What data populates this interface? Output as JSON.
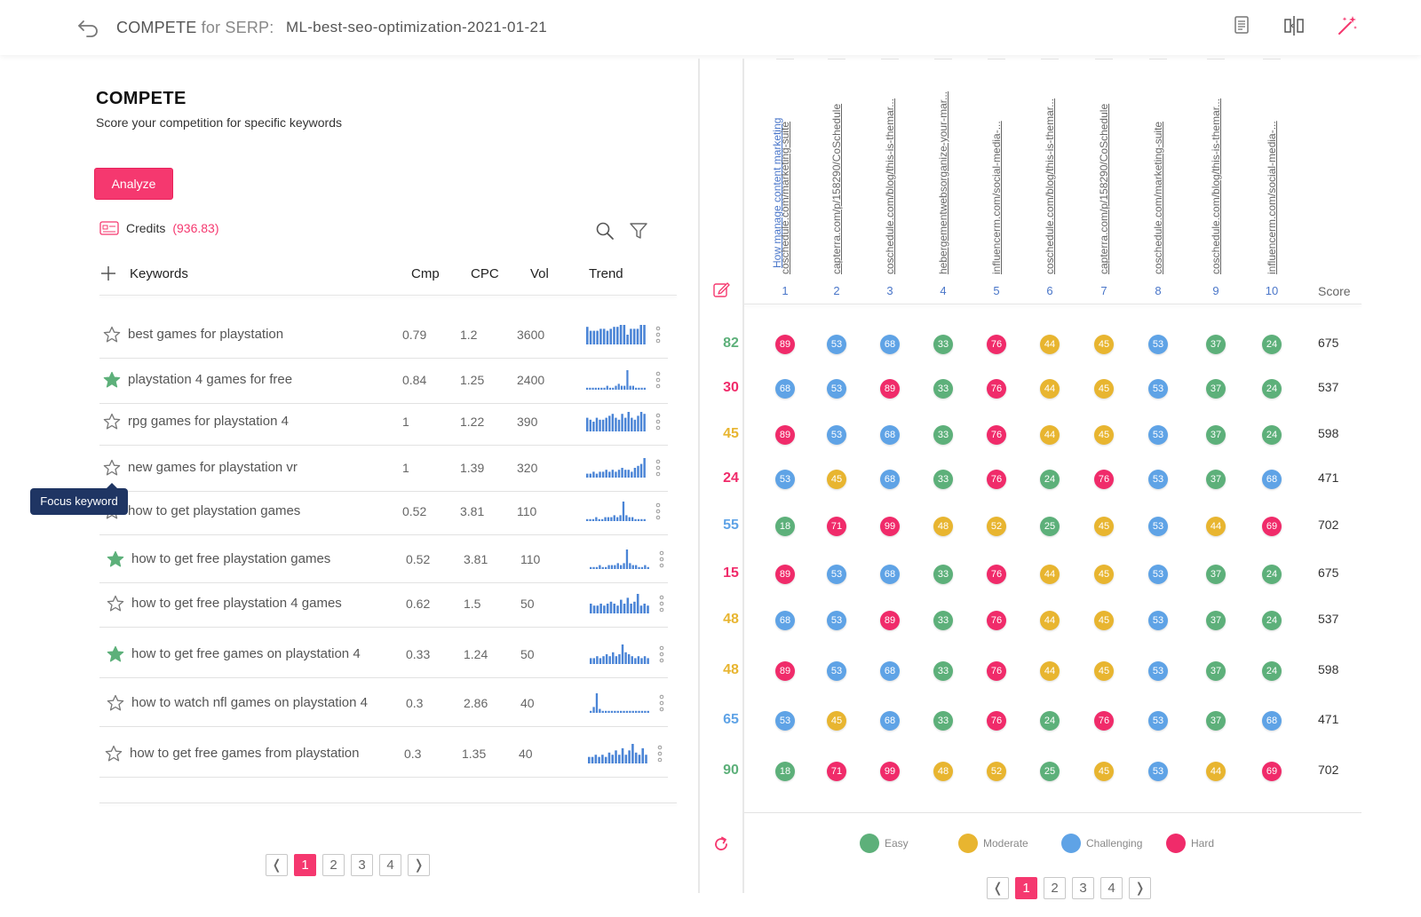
{
  "header": {
    "title_main": "COMPETE",
    "title_for": "for SERP:",
    "project": "ML-best-seo-optimization-2021-01-21",
    "icons": [
      "back-icon",
      "document-icon",
      "compare-columns-icon",
      "magic-wand-icon"
    ]
  },
  "left": {
    "title": "COMPETE",
    "subtitle": "Score your competition for specific keywords",
    "analyze_label": "Analyze",
    "credits_label": "Credits",
    "credits_value": "(936.83)",
    "columns": {
      "keywords": "Keywords",
      "cmp": "Cmp",
      "cpc": "CPC",
      "vol": "Vol",
      "trend": "Trend"
    },
    "tooltip": "Focus keyword",
    "rows": [
      {
        "keyword": "best games for playstation",
        "cmp": "0.79",
        "cpc": "1.2",
        "vol": "3600",
        "starred": false,
        "trend": [
          9,
          7,
          7,
          7,
          8,
          8,
          7,
          8,
          9,
          9,
          10,
          10,
          5,
          8,
          8,
          8,
          10,
          10
        ]
      },
      {
        "keyword": "playstation 4 games for free",
        "cmp": "0.84",
        "cpc": "1.25",
        "vol": "2400",
        "starred": true,
        "trend": [
          1,
          1,
          1,
          1,
          1,
          1,
          1,
          2,
          1,
          1,
          2,
          3,
          2,
          2,
          10,
          2,
          2,
          1,
          1,
          1,
          1
        ]
      },
      {
        "keyword": "rpg games for playstation 4",
        "cmp": "1",
        "cpc": "1.22",
        "vol": "390",
        "starred": false,
        "trend": [
          7,
          6,
          5,
          7,
          6,
          6,
          7,
          8,
          9,
          7,
          6,
          9,
          7,
          10,
          7,
          6,
          8,
          10,
          9
        ]
      },
      {
        "keyword": "new games for playstation vr",
        "cmp": "1",
        "cpc": "1.39",
        "vol": "320",
        "starred": false,
        "trend": [
          2,
          2,
          3,
          2,
          3,
          3,
          4,
          3,
          4,
          3,
          4,
          5,
          4,
          4,
          3,
          5,
          6,
          7,
          10
        ]
      },
      {
        "keyword": "how to get playstation games",
        "cmp": "0.52",
        "cpc": "3.81",
        "vol": "110",
        "starred": false,
        "trend": [
          1,
          1,
          1,
          2,
          1,
          1,
          2,
          2,
          2,
          3,
          2,
          3,
          10,
          3,
          2,
          2,
          1,
          1,
          1,
          1
        ]
      },
      {
        "keyword": "how to get free playstation games",
        "cmp": "0.52",
        "cpc": "3.81",
        "vol": "110",
        "starred": true,
        "trend": [
          1,
          1,
          1,
          2,
          1,
          1,
          2,
          2,
          2,
          3,
          2,
          3,
          10,
          3,
          2,
          2,
          1,
          1,
          2,
          1
        ]
      },
      {
        "keyword": "how to get free playstation 4 games",
        "cmp": "0.62",
        "cpc": "1.5",
        "vol": "50",
        "starred": false,
        "trend": [
          5,
          4,
          4,
          5,
          4,
          5,
          6,
          5,
          4,
          7,
          5,
          8,
          5,
          6,
          10,
          4,
          5,
          4
        ]
      },
      {
        "keyword": "how to get free games on playstation 4",
        "cmp": "0.33",
        "cpc": "1.24",
        "vol": "50",
        "starred": true,
        "trend": [
          3,
          3,
          4,
          3,
          4,
          5,
          4,
          6,
          4,
          5,
          10,
          6,
          5,
          4,
          3,
          4,
          3,
          4,
          3
        ]
      },
      {
        "keyword": "how to watch nfl games on playstation 4",
        "cmp": "0.3",
        "cpc": "2.86",
        "vol": "40",
        "starred": false,
        "trend": [
          1,
          3,
          10,
          2,
          1,
          1,
          1,
          1,
          1,
          1,
          1,
          1,
          1,
          1,
          1,
          1,
          1,
          1,
          1,
          1
        ]
      },
      {
        "keyword": "how to get free games from playstation",
        "cmp": "0.3",
        "cpc": "1.35",
        "vol": "40",
        "starred": false,
        "trend": [
          3,
          3,
          4,
          3,
          4,
          3,
          5,
          4,
          6,
          4,
          7,
          4,
          6,
          9,
          5,
          4,
          7,
          4
        ]
      }
    ],
    "pages": [
      "1",
      "2",
      "3",
      "4"
    ],
    "active_page": "1",
    "prev": "❬",
    "next": "❭"
  },
  "right": {
    "topic": "How manage content marketing",
    "urls": [
      {
        "label": "coschedule.com/marketing-suite",
        "num": "1"
      },
      {
        "label": "capterra.com/p/158290/CoSchedule",
        "num": "2"
      },
      {
        "label": "coschedule.com/blog/this-is-themar...",
        "num": "3"
      },
      {
        "label": "hebergementwebsorganize-your-mar...",
        "num": "4"
      },
      {
        "label": "influencerm.com/social-media-...",
        "num": "5"
      },
      {
        "label": "coschedule.com/blog/this-is-themar...",
        "num": "6"
      },
      {
        "label": "capterra.com/p/158290/CoSchedule",
        "num": "7"
      },
      {
        "label": "coschedule.com/marketing-suite",
        "num": "8"
      },
      {
        "label": "coschedule.com/blog/this-is-themar...",
        "num": "9"
      },
      {
        "label": "influencerm.com/social-media-...",
        "num": "10"
      }
    ],
    "score_label": "Score",
    "rows": [
      {
        "kscore": "82",
        "kcolor": "#5db07a",
        "total": "675",
        "cells": [
          "89",
          "53",
          "68",
          "33",
          "76",
          "44",
          "45",
          "53",
          "37",
          "24"
        ],
        "colors": [
          "hard",
          "chal",
          "chal",
          "easy",
          "hard",
          "mod",
          "mod",
          "chal",
          "easy",
          "easy"
        ]
      },
      {
        "kscore": "30",
        "kcolor": "#f02b6a",
        "total": "537",
        "cells": [
          "68",
          "53",
          "89",
          "33",
          "76",
          "44",
          "45",
          "53",
          "37",
          "24"
        ],
        "colors": [
          "chal",
          "chal",
          "hard",
          "easy",
          "hard",
          "mod",
          "mod",
          "chal",
          "easy",
          "easy"
        ]
      },
      {
        "kscore": "45",
        "kcolor": "#e8b530",
        "total": "598",
        "cells": [
          "89",
          "53",
          "68",
          "33",
          "76",
          "44",
          "45",
          "53",
          "37",
          "24"
        ],
        "colors": [
          "hard",
          "chal",
          "chal",
          "easy",
          "hard",
          "mod",
          "mod",
          "chal",
          "easy",
          "easy"
        ]
      },
      {
        "kscore": "24",
        "kcolor": "#f02b6a",
        "total": "471",
        "cells": [
          "53",
          "45",
          "68",
          "33",
          "76",
          "24",
          "76",
          "53",
          "37",
          "68"
        ],
        "colors": [
          "chal",
          "mod",
          "chal",
          "easy",
          "hard",
          "easy",
          "hard",
          "chal",
          "easy",
          "chal"
        ]
      },
      {
        "kscore": "55",
        "kcolor": "#5fa3e6",
        "total": "702",
        "cells": [
          "18",
          "71",
          "99",
          "48",
          "52",
          "25",
          "45",
          "53",
          "44",
          "69"
        ],
        "colors": [
          "easy",
          "hard",
          "hard",
          "mod",
          "mod",
          "easy",
          "mod",
          "chal",
          "mod",
          "hard"
        ]
      },
      {
        "kscore": "15",
        "kcolor": "#f02b6a",
        "total": "675",
        "cells": [
          "89",
          "53",
          "68",
          "33",
          "76",
          "44",
          "45",
          "53",
          "37",
          "24"
        ],
        "colors": [
          "hard",
          "chal",
          "chal",
          "easy",
          "hard",
          "mod",
          "mod",
          "chal",
          "easy",
          "easy"
        ]
      },
      {
        "kscore": "48",
        "kcolor": "#e8b530",
        "total": "537",
        "cells": [
          "68",
          "53",
          "89",
          "33",
          "76",
          "44",
          "45",
          "53",
          "37",
          "24"
        ],
        "colors": [
          "chal",
          "chal",
          "hard",
          "easy",
          "hard",
          "mod",
          "mod",
          "chal",
          "easy",
          "easy"
        ]
      },
      {
        "kscore": "48",
        "kcolor": "#e8b530",
        "total": "598",
        "cells": [
          "89",
          "53",
          "68",
          "33",
          "76",
          "44",
          "45",
          "53",
          "37",
          "24"
        ],
        "colors": [
          "hard",
          "chal",
          "chal",
          "easy",
          "hard",
          "mod",
          "mod",
          "chal",
          "easy",
          "easy"
        ]
      },
      {
        "kscore": "65",
        "kcolor": "#5fa3e6",
        "total": "471",
        "cells": [
          "53",
          "45",
          "68",
          "33",
          "76",
          "24",
          "76",
          "53",
          "37",
          "68"
        ],
        "colors": [
          "chal",
          "mod",
          "chal",
          "easy",
          "hard",
          "easy",
          "hard",
          "chal",
          "easy",
          "chal"
        ]
      },
      {
        "kscore": "90",
        "kcolor": "#5db07a",
        "total": "702",
        "cells": [
          "18",
          "71",
          "99",
          "48",
          "52",
          "25",
          "45",
          "53",
          "44",
          "69"
        ],
        "colors": [
          "easy",
          "hard",
          "hard",
          "mod",
          "mod",
          "easy",
          "mod",
          "chal",
          "mod",
          "hard"
        ]
      }
    ],
    "legend": [
      {
        "label": "Easy",
        "key": "easy"
      },
      {
        "label": "Moderate",
        "key": "mod"
      },
      {
        "label": "Challenging",
        "key": "chal"
      },
      {
        "label": "Hard",
        "key": "hard"
      }
    ],
    "palette": {
      "easy": "#5db07a",
      "mod": "#e8b530",
      "chal": "#5fa3e6",
      "hard": "#f02b6a"
    },
    "pages": [
      "1",
      "2",
      "3",
      "4"
    ],
    "active_page": "1",
    "prev": "❬",
    "next": "❭"
  },
  "colors": {
    "accent": "#f5386f",
    "link": "#4a76c9",
    "tooltip_bg": "#1f3563",
    "spark": "#4a84d6",
    "star_filled": "#5db07a"
  }
}
